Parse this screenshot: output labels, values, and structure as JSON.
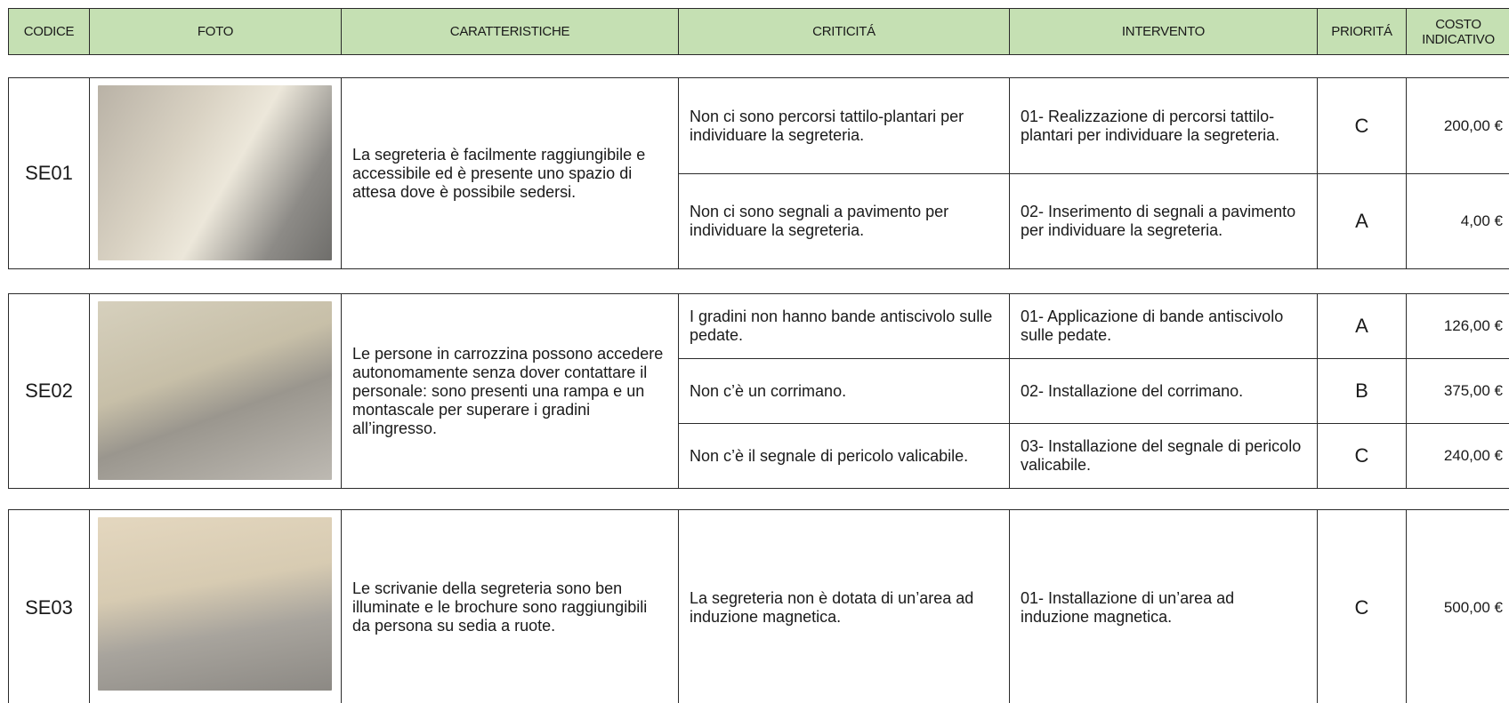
{
  "header": [
    "CODICE",
    "FOTO",
    "CARATTERISTICHE",
    "CRITICITÁ",
    "INTERVENTO",
    "PRIORITÁ",
    "COSTO INDICATIVO"
  ],
  "rows": [
    {
      "code": "SE01",
      "description": "La segreteria è facilmente raggiungibile e accessibile ed è presente uno spazio di attesa dove è possibile sedersi.",
      "items": [
        {
          "issue": "Non ci sono percorsi tattilo-plantari per individuare la segreteria.",
          "intervention": "01- Realizzazione di percorsi tattilo-plantari per individuare la segreteria.",
          "priority": "C",
          "cost": "200,00 €"
        },
        {
          "issue": "Non ci sono segnali a pavimento per individuare la segreteria.",
          "intervention": "02- Inserimento di segnali a pavimento per individuare la segreteria.",
          "priority": "A",
          "cost": "4,00 €"
        }
      ]
    },
    {
      "code": "SE02",
      "description": "Le persone in carrozzina possono accedere autonomamente senza dover contattare il personale: sono presenti una rampa e un montascale per superare i gradini all’ingresso.",
      "items": [
        {
          "issue": "I gradini non hanno bande antiscivolo sulle pedate.",
          "intervention": "01- Applicazione di bande antiscivolo sulle pedate.",
          "priority": "A",
          "cost": "126,00 €"
        },
        {
          "issue": "Non c’è un corrimano.",
          "intervention": "02- Installazione del corrimano.",
          "priority": "B",
          "cost": "375,00 €"
        },
        {
          "issue": "Non c’è il segnale di pericolo valicabile.",
          "intervention": "03- Installazione del segnale di pericolo valicabile.",
          "priority": "C",
          "cost": "240,00 €"
        }
      ]
    },
    {
      "code": "SE03",
      "description": "Le scrivanie della segreteria sono ben illuminate e le brochure sono raggiungibili da persona su sedia a ruote.",
      "items": [
        {
          "issue": "La segreteria non è dotata di un’area ad induzione magnetica.",
          "intervention": "01- Installazione di un’area ad induzione magnetica.",
          "priority": "C",
          "cost": "500,00 €"
        }
      ]
    }
  ]
}
